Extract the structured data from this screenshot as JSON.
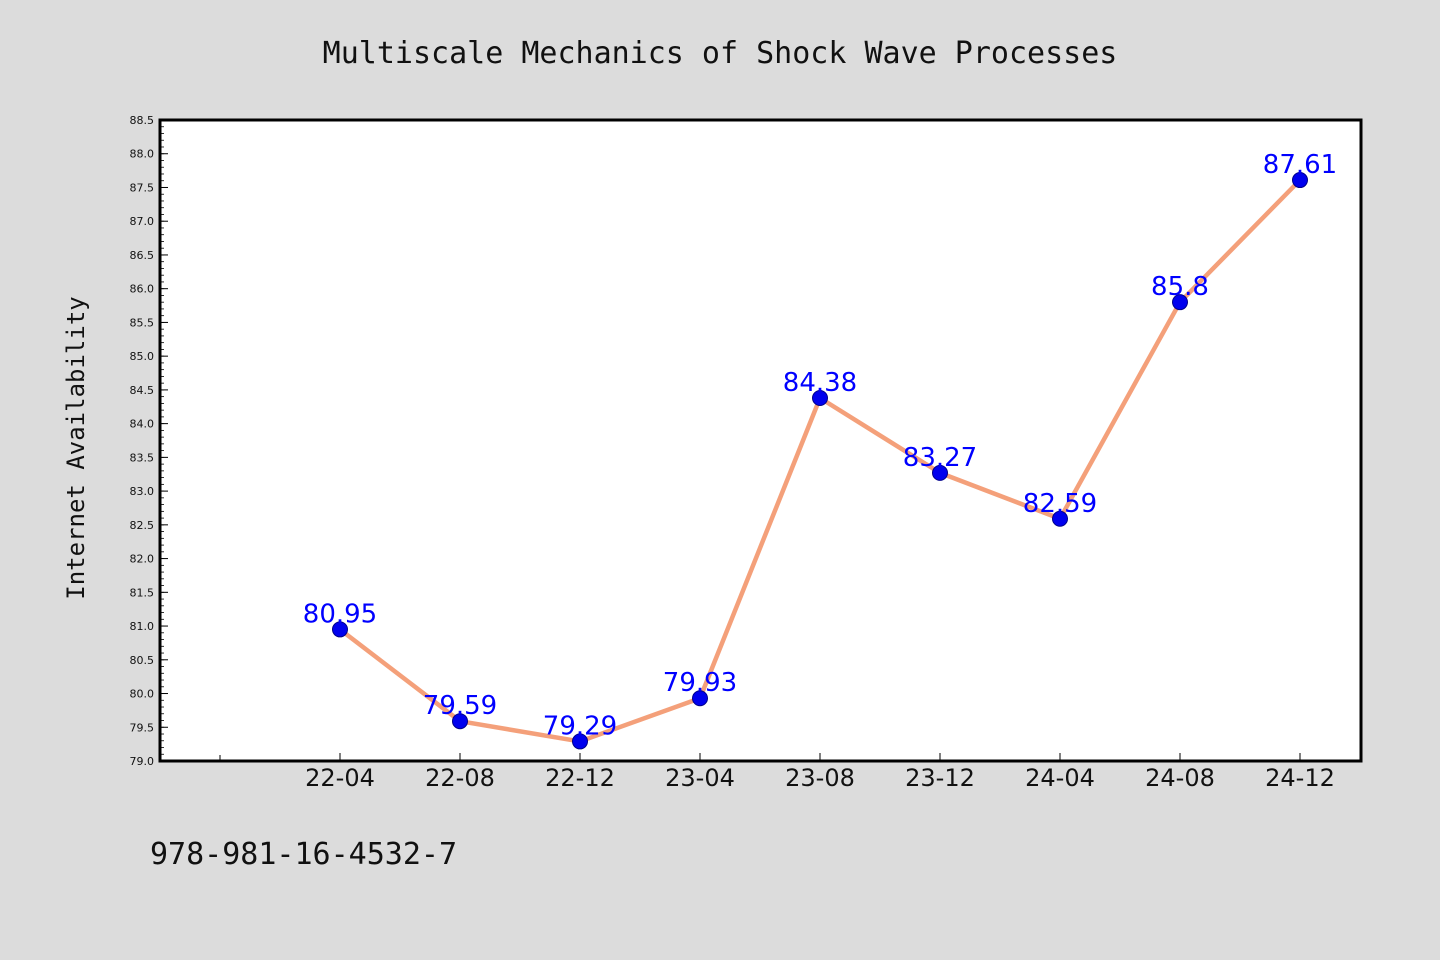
{
  "chart_data": {
    "type": "line",
    "title": "Multiscale Mechanics of Shock Wave Processes",
    "xlabel": "",
    "ylabel": "Internet Availability",
    "categories": [
      "22-04",
      "22-08",
      "22-12",
      "23-04",
      "23-08",
      "23-12",
      "24-04",
      "24-08",
      "24-12"
    ],
    "values": [
      80.95,
      79.59,
      79.29,
      79.93,
      84.38,
      83.27,
      82.59,
      85.8,
      87.61
    ],
    "data_labels": [
      "80.95",
      "79.59",
      "79.29",
      "79.93",
      "84.38",
      "83.27",
      "82.59",
      "85.8",
      "87.61"
    ],
    "ylim": [
      79.0,
      88.5
    ],
    "yticks": [
      "79.0",
      "79.5",
      "80.0",
      "80.5",
      "81.0",
      "81.5",
      "82.0",
      "82.5",
      "83.0",
      "83.5",
      "84.0",
      "84.5",
      "85.0",
      "85.5",
      "86.0",
      "86.5",
      "87.0",
      "87.5",
      "88.0",
      "88.5"
    ],
    "grid": false,
    "line_color": "#f4a07a",
    "marker_color": "#0000ee",
    "label_color": "#0000ff"
  },
  "footer_text": "978-981-16-4532-7"
}
